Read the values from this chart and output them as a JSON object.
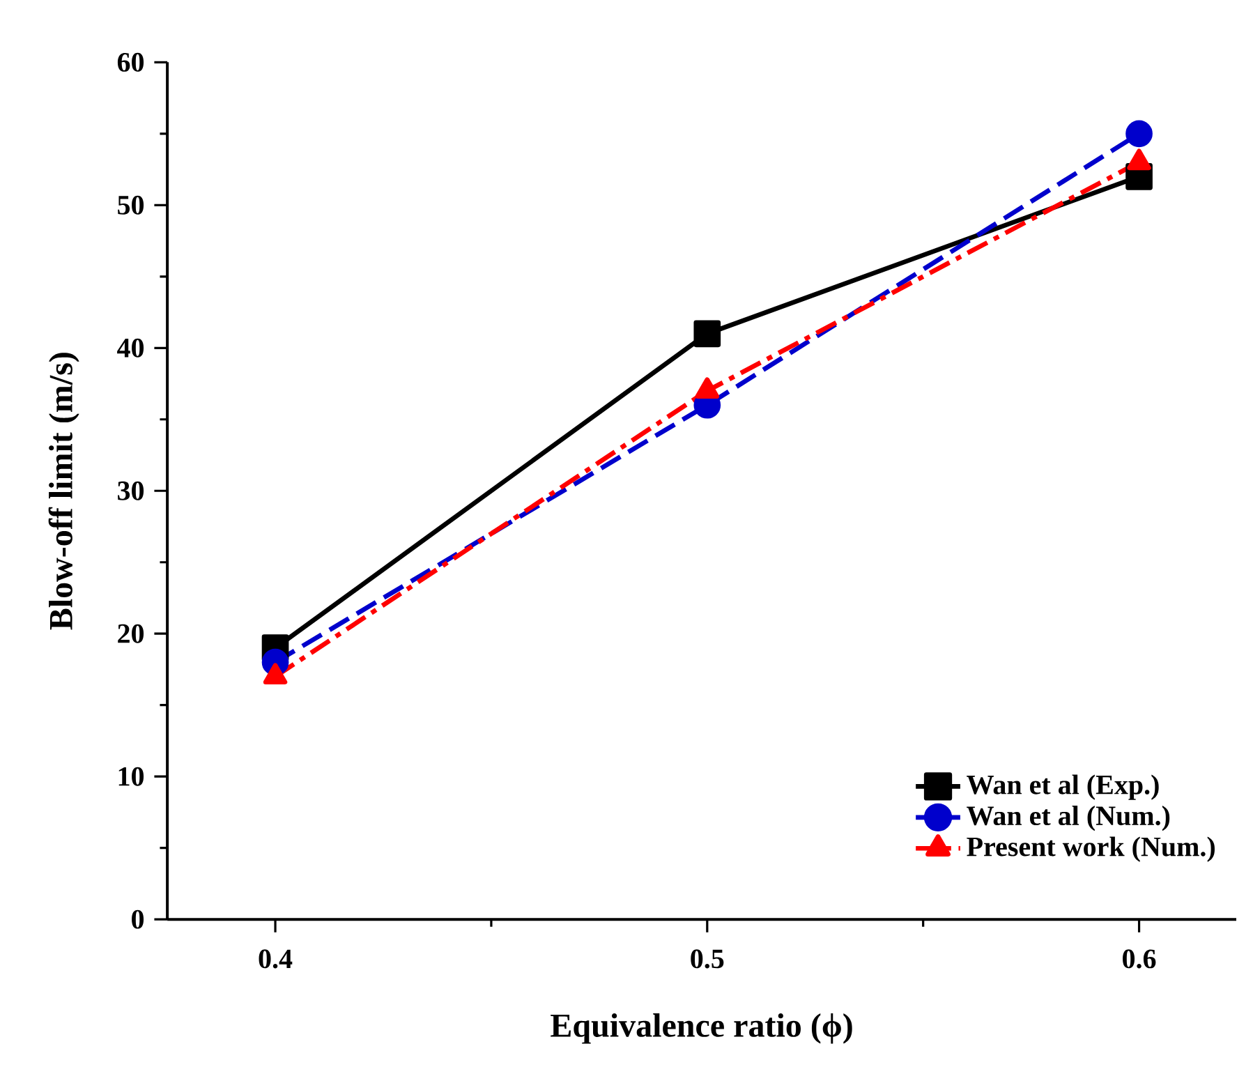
{
  "chart_data": {
    "type": "line",
    "xlabel": "Equivalence ratio (ϕ)",
    "ylabel": "Blow-off limit (m/s)",
    "x": [
      0.4,
      0.5,
      0.6
    ],
    "series": [
      {
        "name": "Wan et al (Exp.)",
        "color": "#000000",
        "values": [
          19,
          41,
          52
        ],
        "marker": "square",
        "line_style": "solid"
      },
      {
        "name": "Wan et al (Num.)",
        "color": "#0000cc",
        "values": [
          18,
          36,
          55
        ],
        "marker": "circle",
        "line_style": "dashed"
      },
      {
        "name": "Present work (Num.)",
        "color": "#ff0000",
        "values": [
          17,
          37,
          53
        ],
        "marker": "triangle",
        "line_style": "dashdot"
      }
    ],
    "xlim": [
      0.375,
      0.6225
    ],
    "ylim": [
      0,
      60
    ],
    "xticks": [
      0.4,
      0.5,
      0.6
    ],
    "yticks": [
      0,
      10,
      20,
      30,
      40,
      50,
      60
    ],
    "grid": false,
    "legend": "bottom right"
  }
}
